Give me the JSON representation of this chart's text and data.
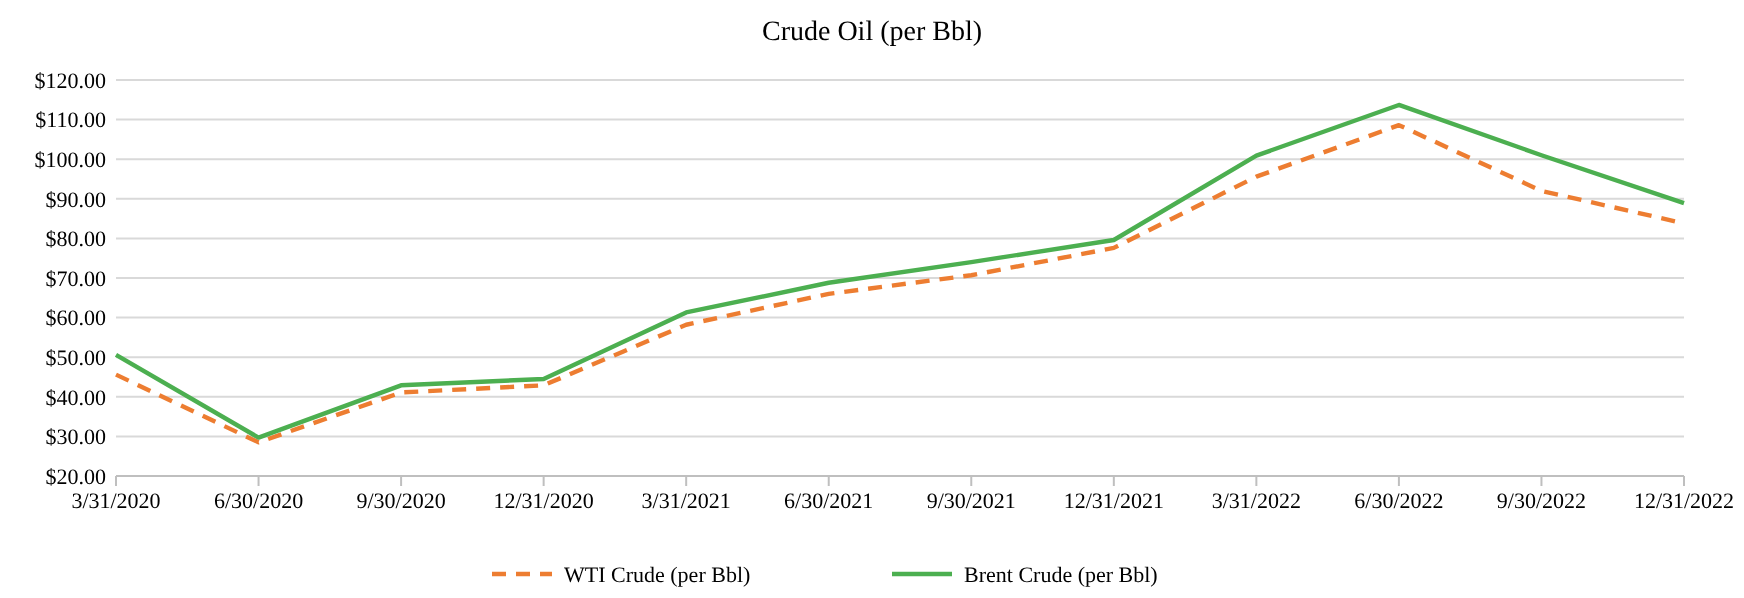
{
  "chart_data": {
    "type": "line",
    "title": "Crude Oil (per Bbl)",
    "categories": [
      "3/31/2020",
      "6/30/2020",
      "9/30/2020",
      "12/31/2020",
      "3/31/2021",
      "6/30/2021",
      "9/30/2021",
      "12/31/2021",
      "3/31/2022",
      "6/30/2022",
      "9/30/2022",
      "12/31/2022"
    ],
    "series": [
      {
        "name": "WTI Crude (per Bbl)",
        "color": "#ed7d31",
        "line_style": "dashed",
        "values": [
          45.6,
          28.5,
          41.1,
          42.9,
          58.2,
          66.0,
          70.7,
          77.6,
          95.6,
          108.6,
          92.0,
          83.8
        ]
      },
      {
        "name": "Brent Crude (per Bbl)",
        "color": "#4caf50",
        "line_style": "solid",
        "values": [
          50.6,
          29.7,
          42.9,
          44.5,
          61.3,
          68.8,
          74.0,
          79.6,
          100.9,
          113.7,
          101.0,
          88.9
        ]
      }
    ],
    "ylim": [
      20,
      120
    ],
    "yticks": [
      {
        "value": 20,
        "label": "$20.00"
      },
      {
        "value": 30,
        "label": "$30.00"
      },
      {
        "value": 40,
        "label": "$40.00"
      },
      {
        "value": 50,
        "label": "$50.00"
      },
      {
        "value": 60,
        "label": "$60.00"
      },
      {
        "value": 70,
        "label": "$70.00"
      },
      {
        "value": 80,
        "label": "$80.00"
      },
      {
        "value": 90,
        "label": "$90.00"
      },
      {
        "value": 100,
        "label": "$100.00"
      },
      {
        "value": 110,
        "label": "$110.00"
      },
      {
        "value": 120,
        "label": "$120.00"
      }
    ],
    "grid": "y",
    "legend": "bottom",
    "marker": "none"
  }
}
